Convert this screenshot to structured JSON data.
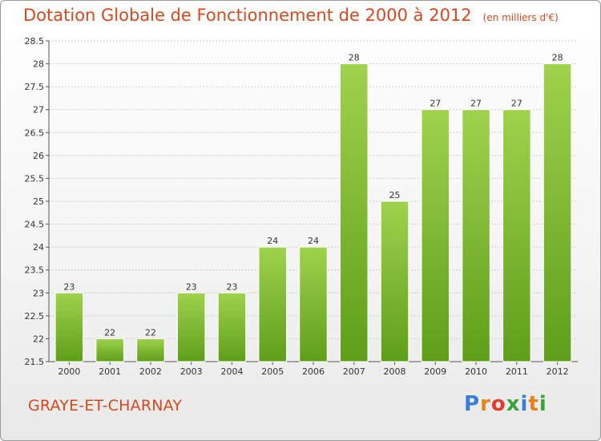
{
  "title": "Dotation Globale de Fonctionnement de 2000 à 2012",
  "unit": "(en milliers d'€)",
  "place": "GRAYE-ET-CHARNAY",
  "logo": {
    "text": "Proxiti",
    "colors": [
      "#3a7fd5",
      "#e8821e",
      "#e23c2b",
      "#3aa43a",
      "#3a7fd5",
      "#e8821e",
      "#3aa43a"
    ]
  },
  "colors": {
    "bar_top": "#9fd24d",
    "bar_bottom": "#5f9e1a",
    "title": "#d9481c",
    "grid": "#cccccc"
  },
  "chart_data": {
    "type": "bar",
    "categories": [
      "2000",
      "2001",
      "2002",
      "2003",
      "2004",
      "2005",
      "2006",
      "2007",
      "2008",
      "2009",
      "2010",
      "2011",
      "2012"
    ],
    "values": [
      23,
      22,
      22,
      23,
      23,
      24,
      24,
      28,
      25,
      27,
      27,
      27,
      28
    ],
    "data_labels": [
      "23",
      "22",
      "22",
      "23",
      "23",
      "24",
      "24",
      "28",
      "25",
      "27",
      "27",
      "27",
      "28"
    ],
    "ylim": [
      21.5,
      28.5
    ],
    "yticks": [
      21.5,
      22,
      22.5,
      23,
      23.5,
      24,
      24.5,
      25,
      25.5,
      26,
      26.5,
      27,
      27.5,
      28,
      28.5
    ],
    "ytick_labels": [
      "21.5",
      "22",
      "22.5",
      "23",
      "23.5",
      "24",
      "24.5",
      "25",
      "25.5",
      "26",
      "26.5",
      "27",
      "27.5",
      "28",
      "28.5"
    ],
    "grid": true,
    "title": "Dotation Globale de Fonctionnement de 2000 à 2012",
    "xlabel": "",
    "ylabel": ""
  }
}
